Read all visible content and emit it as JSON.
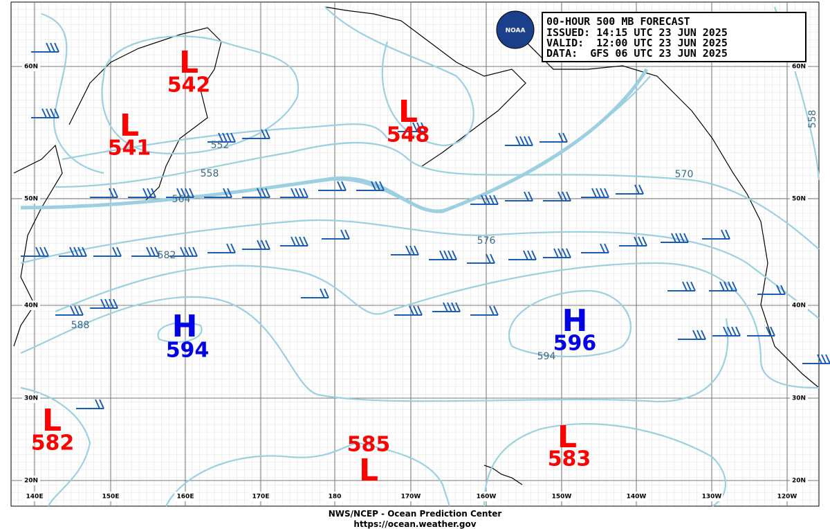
{
  "header": {
    "lines": [
      "00-HOUR 500 MB FORECAST",
      "ISSUED: 14:15 UTC 23 JUN 2025",
      "VALID:  12:00 UTC 23 JUN 2025",
      "DATA:  GFS 06 UTC 23 JUN 2025"
    ]
  },
  "logo": "NOAA",
  "centers": [
    {
      "symbol": "L",
      "value": "542"
    },
    {
      "symbol": "L",
      "value": "541"
    },
    {
      "symbol": "L",
      "value": "548"
    },
    {
      "symbol": "H",
      "value": "594"
    },
    {
      "symbol": "H",
      "value": "596"
    },
    {
      "symbol": "L",
      "value": "582"
    },
    {
      "symbol": "L",
      "value": "585"
    },
    {
      "symbol": "L",
      "value": "583"
    }
  ],
  "contour_labels": [
    "552",
    "558",
    "564",
    "570",
    "576",
    "582",
    "588",
    "594",
    "558"
  ],
  "lat_labels": [
    "60N",
    "50N",
    "40N",
    "30N",
    "20N"
  ],
  "lon_labels": [
    "140E",
    "150E",
    "160E",
    "170E",
    "180",
    "170W",
    "160W",
    "150W",
    "140W",
    "130W",
    "120W"
  ],
  "footer": {
    "lines": [
      "NWS/NCEP - Ocean Prediction Center",
      "https://ocean.weather.gov"
    ]
  }
}
